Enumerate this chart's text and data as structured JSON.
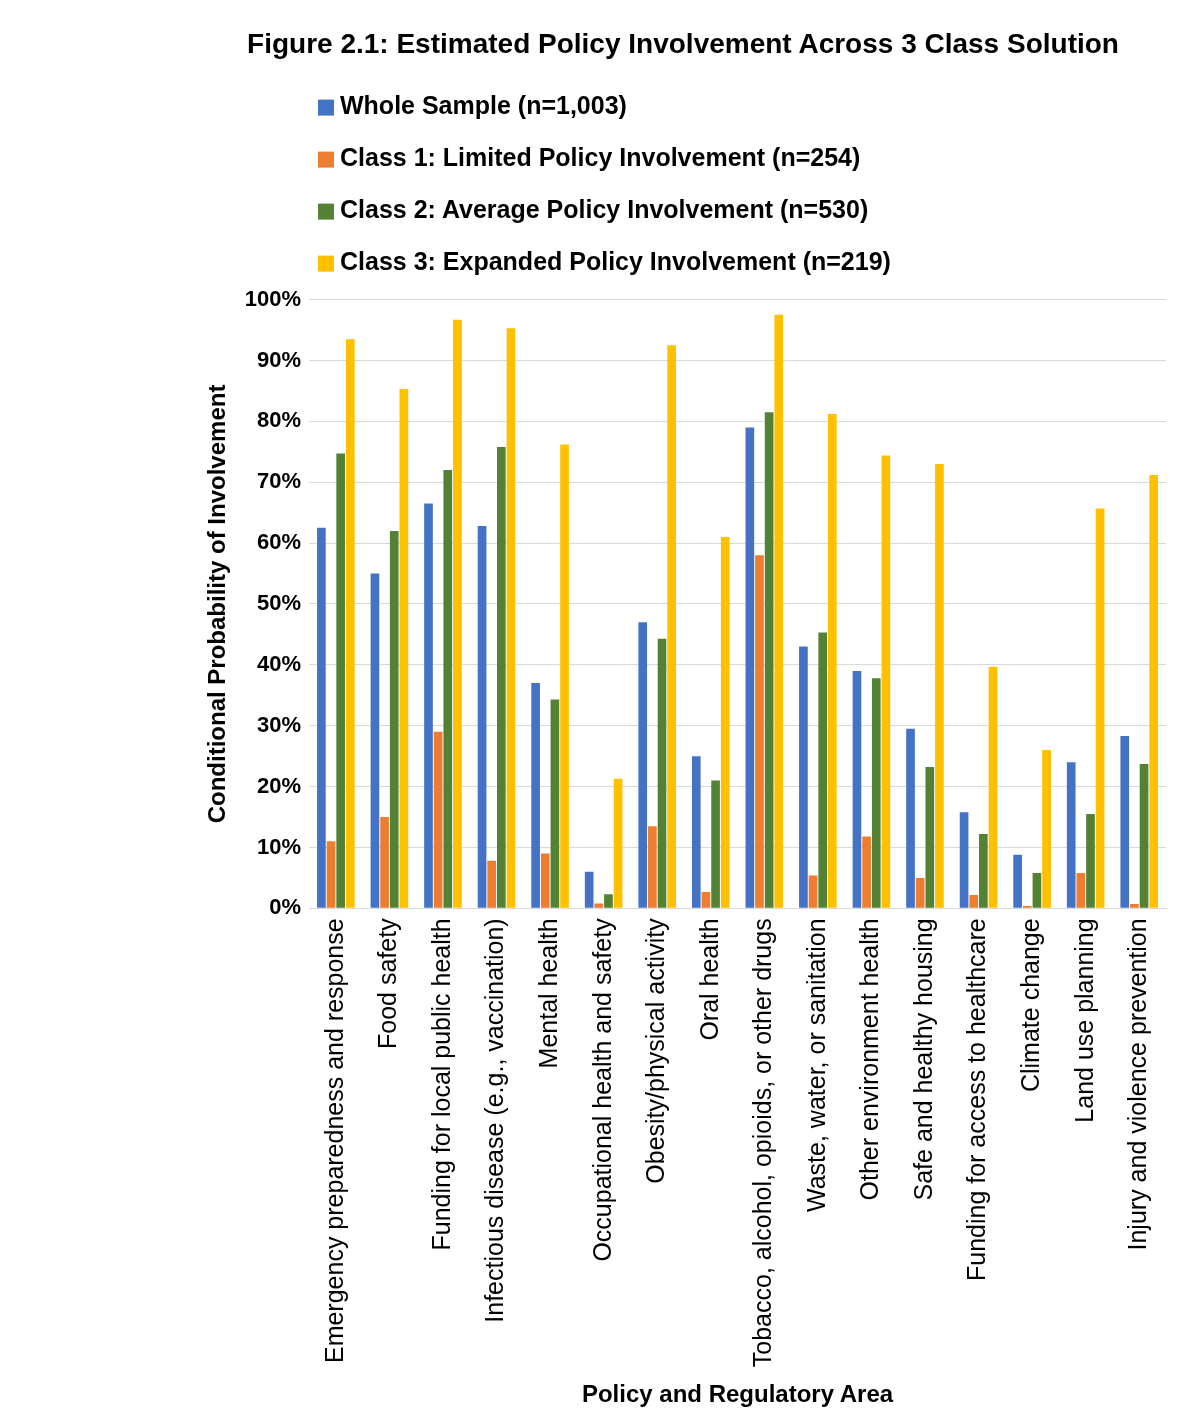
{
  "chart_data": {
    "type": "bar",
    "title": "Figure 2.1: Estimated Policy Involvement Across 3 Class Solution",
    "xlabel": "Policy and Regulatory Area",
    "ylabel": "Conditional Probability of Involvement",
    "categories": [
      "Emergency preparedness and response",
      "Food safety",
      "Funding for local public health",
      "Infectious disease (e.g., vaccination)",
      "Mental health",
      "Occupational health and safety",
      "Obesity/physical activity",
      "Oral health",
      "Tobacco, alcohol, opioids, or other drugs",
      "Waste, water, or sanitation",
      "Other environment health",
      "Safe and healthy housing",
      "Funding for access to healthcare",
      "Climate change",
      "Land use planning",
      "Injury and violence prevention"
    ],
    "series": [
      {
        "name": "Whole Sample (n=1,003)",
        "color": "#4472c4",
        "values": [
          62.5,
          55,
          66.5,
          62.8,
          37,
          6,
          47,
          25,
          79,
          43,
          39,
          29.5,
          15.8,
          8.8,
          24,
          28.3
        ]
      },
      {
        "name": "Class 1: Limited Policy Involvement (n=254)",
        "color": "#ed7d31",
        "values": [
          11,
          15,
          29,
          7.8,
          9,
          0.8,
          13.5,
          2.7,
          58,
          5.4,
          11.8,
          5,
          2.2,
          0.4,
          5.8,
          0.7
        ]
      },
      {
        "name": "Class 2: Average Policy Involvement (n=530)",
        "color": "#548235",
        "values": [
          74.7,
          62,
          72,
          75.8,
          34.3,
          2.3,
          44.3,
          21,
          81.5,
          45.3,
          37.8,
          23.2,
          12.2,
          5.8,
          15.5,
          23.7
        ]
      },
      {
        "name": "Class 3: Expanded Policy Involvement (n=219)",
        "color": "#ffc000",
        "values": [
          93.5,
          85.3,
          96.7,
          95.3,
          76.2,
          21.3,
          92.5,
          61,
          97.5,
          81.2,
          74.4,
          73,
          39.7,
          26,
          65.7,
          71.2
        ]
      }
    ],
    "ylim": [
      0,
      100
    ],
    "yticks": [
      {
        "value": 0,
        "label": "0%"
      },
      {
        "value": 10,
        "label": "10%"
      },
      {
        "value": 20,
        "label": "20%"
      },
      {
        "value": 30,
        "label": "30%"
      },
      {
        "value": 40,
        "label": "40%"
      },
      {
        "value": 50,
        "label": "50%"
      },
      {
        "value": 60,
        "label": "60%"
      },
      {
        "value": 70,
        "label": "70%"
      },
      {
        "value": 80,
        "label": "80%"
      },
      {
        "value": 90,
        "label": "90%"
      },
      {
        "value": 100,
        "label": "100%"
      }
    ],
    "grid": "y",
    "legend": "top"
  }
}
